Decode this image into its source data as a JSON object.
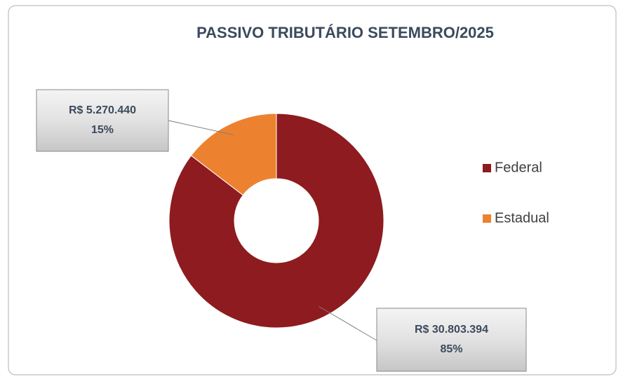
{
  "chart_data": {
    "type": "donut",
    "title": "PASSIVO TRIBUTÁRIO SETEMBRO/2025",
    "categories": [
      "Federal",
      "Estadual"
    ],
    "values": [
      30803394,
      5270440
    ],
    "value_labels": [
      "R$ 30.803.394",
      "R$ 5.270.440"
    ],
    "percent_labels": [
      "85%",
      "15%"
    ],
    "colors": [
      "#8e1b1f",
      "#ec8230"
    ],
    "legend": "right"
  }
}
